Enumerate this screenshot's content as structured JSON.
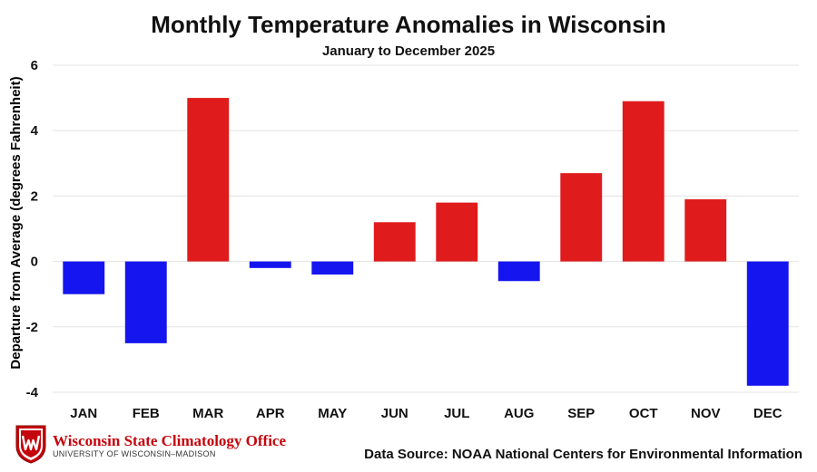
{
  "chart_data": {
    "type": "bar",
    "title": "Monthly Temperature Anomalies in Wisconsin",
    "subtitle": "January to December 2025",
    "ylabel": "Departure from Average (degrees Fahrenheit)",
    "xlabel": "",
    "categories": [
      "JAN",
      "FEB",
      "MAR",
      "APR",
      "MAY",
      "JUN",
      "JUL",
      "AUG",
      "SEP",
      "OCT",
      "NOV",
      "DEC"
    ],
    "values": [
      -1.0,
      -2.5,
      5.0,
      -0.2,
      -0.4,
      1.2,
      1.8,
      -0.6,
      2.7,
      4.9,
      1.9,
      -3.8
    ],
    "ylim": [
      -4,
      6
    ],
    "yticks": [
      -4,
      -2,
      0,
      2,
      4,
      6
    ],
    "grid": true,
    "colors": {
      "positive": "#e01b1b",
      "negative": "#1515f0",
      "grid": "#e3e3e3"
    }
  },
  "footer": {
    "org_name": "Wisconsin State Climatology Office",
    "org_sub": "UNIVERSITY OF WISCONSIN–MADISON",
    "source": "Data Source: NOAA National Centers for Environmental Information"
  }
}
